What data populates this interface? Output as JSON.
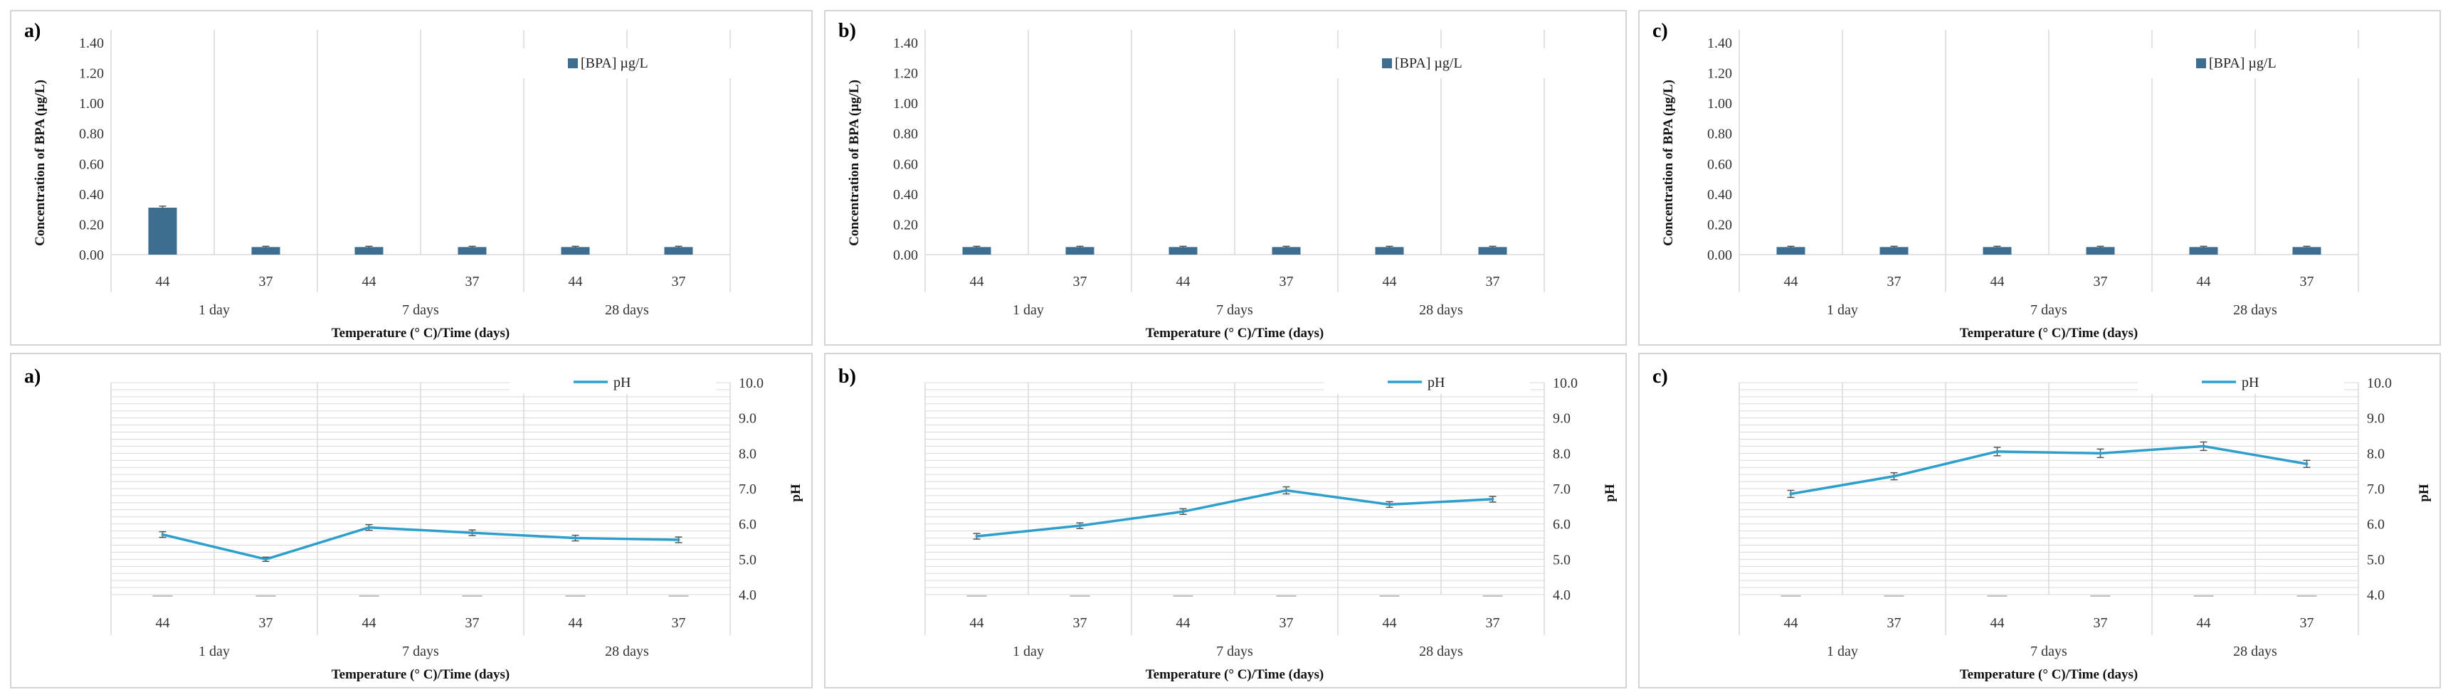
{
  "colors": {
    "bar": "#3d6e8f",
    "line": "#2e9fcd",
    "grid": "#d9d9d9",
    "frame": "#d4d4d4",
    "text": "#333333"
  },
  "chart_data": [
    {
      "panel": "a)",
      "type": "bar",
      "ylabel": "Concentration of BPA (µg/L)",
      "xlabel": "Temperature (° C)/Time (days)",
      "categories": [
        "44",
        "37",
        "44",
        "37",
        "44",
        "37"
      ],
      "groups": [
        "1 day",
        "7 days",
        "28 days"
      ],
      "ylim": [
        0,
        1.4
      ],
      "yticks": [
        "0.00",
        "0.20",
        "0.40",
        "0.60",
        "0.80",
        "1.00",
        "1.20",
        "1.40"
      ],
      "series": [
        {
          "name": "[BPA] µg/L",
          "values": [
            0.31,
            0.05,
            0.05,
            0.05,
            0.05,
            0.05
          ],
          "errors": [
            0.01,
            0.005,
            0.005,
            0.005,
            0.005,
            0.005
          ]
        }
      ],
      "legend": "top-right",
      "grid": "vertical"
    },
    {
      "panel": "b)",
      "type": "bar",
      "ylabel": "Concentration of BPA (µg/L)",
      "xlabel": "Temperature (° C)/Time (days)",
      "categories": [
        "44",
        "37",
        "44",
        "37",
        "44",
        "37"
      ],
      "groups": [
        "1 day",
        "7 days",
        "28 days"
      ],
      "ylim": [
        0,
        1.4
      ],
      "yticks": [
        "0.00",
        "0.20",
        "0.40",
        "0.60",
        "0.80",
        "1.00",
        "1.20",
        "1.40"
      ],
      "series": [
        {
          "name": "[BPA] µg/L",
          "values": [
            0.05,
            0.05,
            0.05,
            0.05,
            0.05,
            0.05
          ],
          "errors": [
            0.005,
            0.005,
            0.005,
            0.005,
            0.005,
            0.005
          ]
        }
      ],
      "legend": "top-right",
      "grid": "vertical"
    },
    {
      "panel": "c)",
      "type": "bar",
      "ylabel": "Concentration of BPA (µg/L)",
      "xlabel": "Temperature (° C)/Time (days)",
      "categories": [
        "44",
        "37",
        "44",
        "37",
        "44",
        "37"
      ],
      "groups": [
        "1 day",
        "7 days",
        "28 days"
      ],
      "ylim": [
        0,
        1.4
      ],
      "yticks": [
        "0.00",
        "0.20",
        "0.40",
        "0.60",
        "0.80",
        "1.00",
        "1.20",
        "1.40"
      ],
      "series": [
        {
          "name": "[BPA] µg/L",
          "values": [
            0.05,
            0.05,
            0.05,
            0.05,
            0.05,
            0.05
          ],
          "errors": [
            0.005,
            0.005,
            0.005,
            0.005,
            0.005,
            0.005
          ]
        }
      ],
      "legend": "top-right",
      "grid": "vertical"
    },
    {
      "panel": "a)",
      "type": "line",
      "ylabel": "pH",
      "xlabel": "Temperature (° C)/Time (days)",
      "categories": [
        "44",
        "37",
        "44",
        "37",
        "44",
        "37"
      ],
      "groups": [
        "1 day",
        "7 days",
        "28 days"
      ],
      "ylim": [
        4.0,
        10.0
      ],
      "yticks": [
        "4.0",
        "5.0",
        "6.0",
        "7.0",
        "8.0",
        "9.0",
        "10.0"
      ],
      "series": [
        {
          "name": "pH",
          "values": [
            5.7,
            5.0,
            5.9,
            5.75,
            5.6,
            5.55
          ],
          "errors": [
            0.08,
            0.06,
            0.08,
            0.08,
            0.08,
            0.08
          ]
        }
      ],
      "legend": "top-right",
      "grid": "horizontal and vertical",
      "y_axis_side": "right"
    },
    {
      "panel": "b)",
      "type": "line",
      "ylabel": "pH",
      "xlabel": "Temperature (° C)/Time (days)",
      "categories": [
        "44",
        "37",
        "44",
        "37",
        "44",
        "37"
      ],
      "groups": [
        "1 day",
        "7 days",
        "28 days"
      ],
      "ylim": [
        4.0,
        10.0
      ],
      "yticks": [
        "4.0",
        "5.0",
        "6.0",
        "7.0",
        "8.0",
        "9.0",
        "10.0"
      ],
      "series": [
        {
          "name": "pH",
          "values": [
            5.65,
            5.95,
            6.35,
            6.95,
            6.55,
            6.7
          ],
          "errors": [
            0.08,
            0.08,
            0.08,
            0.1,
            0.08,
            0.08
          ]
        }
      ],
      "legend": "top-right",
      "grid": "horizontal and vertical",
      "y_axis_side": "right"
    },
    {
      "panel": "c)",
      "type": "line",
      "ylabel": "pH",
      "xlabel": "Temperature (° C)/Time (days)",
      "categories": [
        "44",
        "37",
        "44",
        "37",
        "44",
        "37"
      ],
      "groups": [
        "1 day",
        "7 days",
        "28 days"
      ],
      "ylim": [
        4.0,
        10.0
      ],
      "yticks": [
        "4.0",
        "5.0",
        "6.0",
        "7.0",
        "8.0",
        "9.0",
        "10.0"
      ],
      "series": [
        {
          "name": "pH",
          "values": [
            6.85,
            7.35,
            8.05,
            8.0,
            8.2,
            7.7
          ],
          "errors": [
            0.1,
            0.1,
            0.12,
            0.12,
            0.12,
            0.1
          ]
        }
      ],
      "legend": "top-right",
      "grid": "horizontal and vertical",
      "y_axis_side": "right"
    }
  ]
}
